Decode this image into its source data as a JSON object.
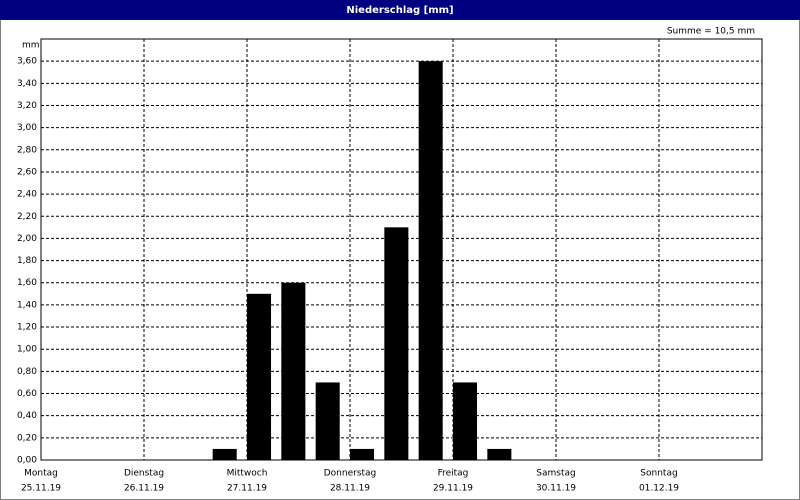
{
  "chart_data": {
    "type": "bar",
    "title": "Niederschlag [mm]",
    "ylabel": "mm",
    "annotation": "Summe = 10,5 mm",
    "categories": [
      "Montag",
      null,
      null,
      "Dienstag",
      null,
      null,
      "Mittwoch",
      null,
      null,
      "Donnerstag",
      null,
      null,
      "Freitag",
      null,
      null,
      "Samstag",
      null,
      null,
      "Sonntag",
      null,
      null
    ],
    "dates": [
      "25.11.19",
      null,
      null,
      "26.11.19",
      null,
      null,
      "27.11.19",
      null,
      null,
      "28.11.19",
      null,
      null,
      "29.11.19",
      null,
      null,
      "30.11.19",
      null,
      null,
      "01.12.19",
      null,
      null
    ],
    "values": [
      0,
      0,
      0,
      0,
      0,
      0.1,
      1.5,
      1.6,
      0.7,
      0.1,
      2.1,
      3.6,
      0.7,
      0.1,
      0,
      0,
      0,
      0,
      0,
      0,
      0
    ],
    "color": "#000000",
    "ylim": [
      0,
      3.8
    ],
    "yticks": [
      {
        "value": 0,
        "label": "0,00"
      },
      {
        "value": 0.2,
        "label": "0,20"
      },
      {
        "value": 0.4,
        "label": "0,40"
      },
      {
        "value": 0.6,
        "label": "0,60"
      },
      {
        "value": 0.8,
        "label": "0,80"
      },
      {
        "value": 1.0,
        "label": "1,00"
      },
      {
        "value": 1.2,
        "label": "1,20"
      },
      {
        "value": 1.4,
        "label": "1,40"
      },
      {
        "value": 1.6,
        "label": "1,60"
      },
      {
        "value": 1.8,
        "label": "1,80"
      },
      {
        "value": 2.0,
        "label": "2,00"
      },
      {
        "value": 2.2,
        "label": "2,20"
      },
      {
        "value": 2.4,
        "label": "2,40"
      },
      {
        "value": 2.6,
        "label": "2,60"
      },
      {
        "value": 2.8,
        "label": "2,80"
      },
      {
        "value": 3.0,
        "label": "3,00"
      },
      {
        "value": 3.2,
        "label": "3,20"
      },
      {
        "value": 3.4,
        "label": "3,40"
      },
      {
        "value": 3.6,
        "label": "3,60"
      }
    ],
    "grid": true
  }
}
